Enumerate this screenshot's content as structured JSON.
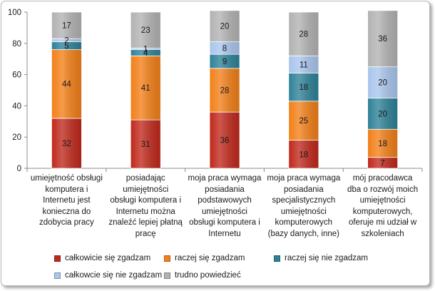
{
  "chart_data": {
    "type": "bar",
    "stacked": true,
    "title": "",
    "xlabel": "",
    "ylabel": "",
    "ylim": [
      0,
      100
    ],
    "yticks": [
      0,
      20,
      40,
      60,
      80,
      100
    ],
    "grid": false,
    "legend_position": "bottom",
    "categories": [
      "umiejętność obsługi komputera i Internetu jest konieczna do zdobycia pracy",
      "posiadając umiejętności obsługi komputera i Internetu można znaleźć lepiej płatną pracę",
      "moja praca wymaga posiadania podstawowych umiejętności obsługi komputera i Internetu",
      "moja praca wymaga posiadania specjalistycznych umiejętności komputerowych (bazy danych, inne)",
      "mój pracodawca dba o rozwój moich umiejętności komputerowych, oferuje mi udział w szkoleniach"
    ],
    "category_lines": [
      [
        "umiejętność obsługi",
        "komputera i",
        "Internetu jest",
        "konieczna do",
        "zdobycia pracy"
      ],
      [
        "posiadając",
        "umiejętności",
        "obsługi komputera i",
        "Internetu można",
        "znaleźć lepiej płatną",
        "pracę"
      ],
      [
        "moja praca wymaga",
        "posiadania",
        "podstawowych",
        "umiejętności",
        "obsługi komputera i",
        "Internetu"
      ],
      [
        "moja praca wymaga",
        "posiadania",
        "specjalistycznych",
        "umiejętności",
        "komputerowych",
        "(bazy danych, inne)"
      ],
      [
        "mój pracodawca",
        "dba o rozwój moich",
        "umiejętności",
        "komputerowych,",
        "oferuje mi udział w",
        "szkoleniach"
      ]
    ],
    "series": [
      {
        "name": "całkowicie się zgadzam",
        "color": "#c0281b",
        "values": [
          32,
          31,
          36,
          18,
          7
        ]
      },
      {
        "name": "raczej się zgadzam",
        "color": "#f27f17",
        "values": [
          44,
          41,
          28,
          25,
          18
        ]
      },
      {
        "name": "raczej się nie zgadzam",
        "color": "#2d8197",
        "values": [
          5,
          4,
          9,
          18,
          20
        ]
      },
      {
        "name": "całkowcie się nie zgadzam",
        "color": "#a9c5ec",
        "values": [
          2,
          1,
          8,
          11,
          20
        ]
      },
      {
        "name": "trudno powiedzieć",
        "color": "#b2b2b2",
        "values": [
          17,
          23,
          20,
          28,
          36
        ]
      }
    ]
  }
}
